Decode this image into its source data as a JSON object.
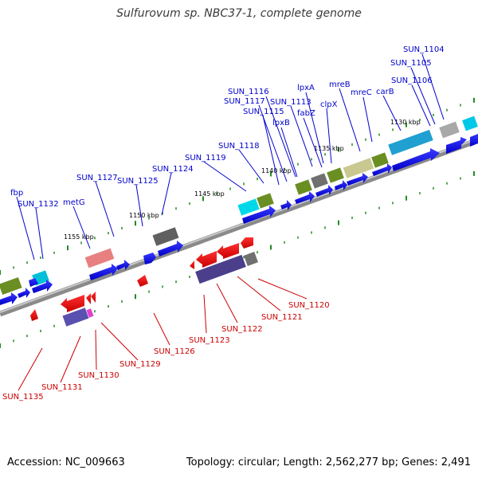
{
  "title": "Sulfurovum sp. NBC37-1, complete genome",
  "footer": {
    "accession": "Accession: NC_009663",
    "summary": "Topology: circular; Length: 2,562,277 bp; Genes: 2,491"
  },
  "colors": {
    "top_label": "#0000cc",
    "bottom_label": "#cc0000",
    "forward_gene": "#0000ee",
    "reverse_gene": "#ee0000",
    "backbone": "#808080",
    "tick": "#228b22"
  },
  "kbp_labels": [
    "1130 kbp",
    "1135 kbp",
    "1140 kbp",
    "1145 kbp",
    "1150 kbp",
    "1155 kbp"
  ],
  "top_labels": [
    "SUN_1104",
    "SUN_1105",
    "SUN_1106",
    "carB",
    "mreB",
    "mreC",
    "lpxA",
    "clpX",
    "SUN_1113",
    "fabZ",
    "SUN_1116",
    "SUN_1117",
    "SUN_1115",
    "lpxB",
    "SUN_1118",
    "SUN_1119",
    "SUN_1124",
    "SUN_1127",
    "SUN_1125",
    "metG",
    "fbp",
    "SUN_1132"
  ],
  "bottom_labels": [
    "SUN_1120",
    "SUN_1121",
    "SUN_1122",
    "SUN_1123",
    "SUN_1126",
    "SUN_1129",
    "SUN_1130",
    "SUN_1131",
    "SUN_1135"
  ]
}
